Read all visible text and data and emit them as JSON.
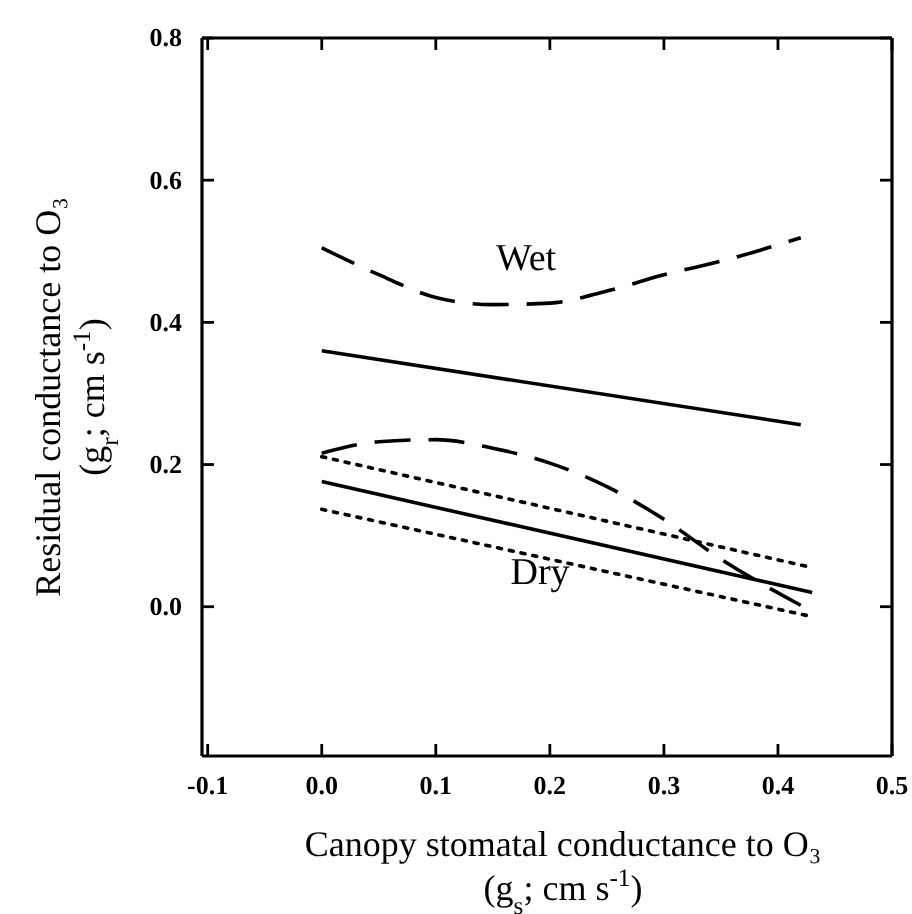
{
  "chart_data": {
    "type": "line",
    "xlabel": "Canopy stomatal conductance to O₃\n(g$_{s}$; cm s$^{-1}$)",
    "ylabel": "Residual conductance to O₃\n(g$_{r}$; cm s$^{-1}$)",
    "xlim": [
      -0.105,
      0.5
    ],
    "ylim": [
      -0.21,
      0.8
    ],
    "xticks": [
      -0.1,
      {
        "value": 0,
        "label": "0.0"
      },
      0.1,
      0.2,
      0.3,
      0.4,
      0.5
    ],
    "yticks": [
      {
        "value": 0,
        "label": "0.0"
      },
      0.2,
      0.4,
      0.6,
      0.8
    ],
    "grid": false,
    "series": [
      {
        "color": "#000000",
        "line_style": "dashed",
        "x": [
          0,
          0.05,
          0.1,
          0.15,
          0.2,
          0.25,
          0.3,
          0.35,
          0.42
        ],
        "values": [
          0.505,
          0.467,
          0.435,
          0.425,
          0.427,
          0.444,
          0.467,
          0.486,
          0.519
        ]
      },
      {
        "color": "#000000",
        "line_style": "solid",
        "x": [
          0,
          0.42
        ],
        "values": [
          0.36,
          0.256
        ]
      },
      {
        "color": "#000000",
        "line_style": "dashed",
        "x": [
          0,
          0.05,
          0.1,
          0.15,
          0.2,
          0.25,
          0.3,
          0.35,
          0.42
        ],
        "values": [
          0.216,
          0.232,
          0.235,
          0.223,
          0.202,
          0.169,
          0.123,
          0.067,
          0.002
        ]
      },
      {
        "color": "#000000",
        "line_style": "solid",
        "x": [
          0,
          0.43
        ],
        "values": [
          0.176,
          0.02
        ]
      },
      {
        "color": "#000000",
        "line_style": "dotted",
        "x": [
          0,
          0.43
        ],
        "values": [
          0.211,
          0.055
        ]
      },
      {
        "color": "#000000",
        "line_style": "dotted",
        "x": [
          0,
          0.43
        ],
        "values": [
          0.137,
          -0.014
        ]
      }
    ],
    "annotations": [
      "Wet",
      "Dry"
    ]
  }
}
